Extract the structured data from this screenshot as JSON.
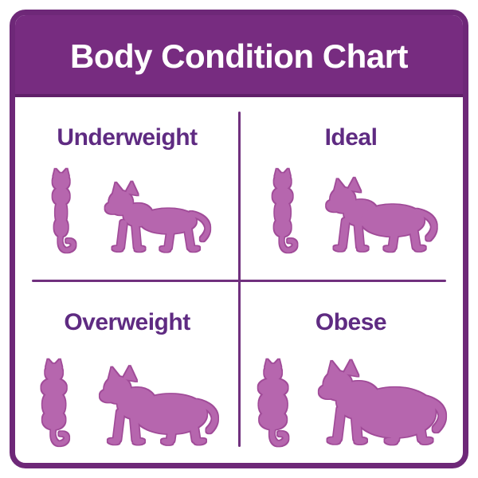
{
  "title": "Body Condition Chart",
  "quadrants": [
    {
      "id": "underweight",
      "label": "Underweight",
      "top_icon": "cat-top-view",
      "side_icon": "cat-side-view"
    },
    {
      "id": "ideal",
      "label": "Ideal",
      "top_icon": "cat-top-view",
      "side_icon": "cat-side-view"
    },
    {
      "id": "overweight",
      "label": "Overweight",
      "top_icon": "cat-top-view",
      "side_icon": "cat-side-view"
    },
    {
      "id": "obese",
      "label": "Obese",
      "top_icon": "cat-top-view",
      "side_icon": "cat-side-view"
    }
  ],
  "colors": {
    "background": "#FFFFFF",
    "header_background": "#772C80",
    "border": "#6E2878",
    "divider": "#70307E",
    "title_text": "#FFFFFF",
    "label_text": "#5F2B82",
    "cat_fill": "#B666AE",
    "cat_outline": "#A04B98"
  }
}
